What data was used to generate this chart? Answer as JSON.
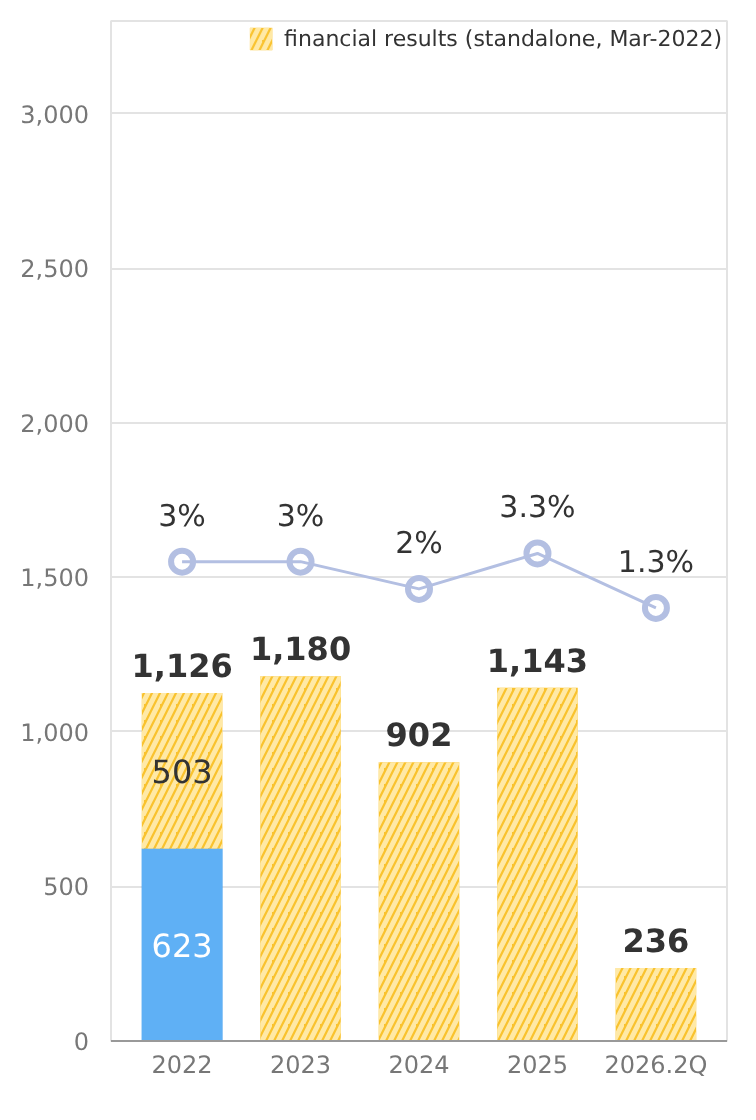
{
  "chart_data": {
    "type": "bar",
    "stacked": true,
    "categories": [
      "2022",
      "2023",
      "2024",
      "2025",
      "2026.2Q"
    ],
    "series": [
      {
        "color": "#1e88e5",
        "values": [
          623,
          null,
          null,
          null,
          null
        ],
        "value_labels": [
          "623",
          null,
          null,
          null,
          null
        ]
      },
      {
        "name": "financial results (standalone, Mar-2022)",
        "color": "#f9c22e",
        "values": [
          503,
          1180,
          902,
          1143,
          236
        ],
        "value_labels": [
          "503",
          null,
          null,
          null,
          null
        ]
      },
      {
        "type": "line",
        "axis": "y2",
        "color": "#b3bfe2",
        "values": [
          3,
          3,
          2,
          3.3,
          1.3
        ],
        "value_labels": [
          "3%",
          "3%",
          "2%",
          "3.3%",
          "1.3%"
        ]
      }
    ],
    "totals": [
      "1,126",
      "1,180",
      "902",
      "1,143",
      "236"
    ],
    "ylim": [
      0,
      3300
    ],
    "yticks": [
      {
        "value": 0,
        "label": "0"
      },
      {
        "value": 500,
        "label": "500"
      },
      {
        "value": 1000,
        "label": "1,000"
      },
      {
        "value": 1500,
        "label": "1,500"
      },
      {
        "value": 2000,
        "label": "2,000"
      },
      {
        "value": 2500,
        "label": "2,500"
      },
      {
        "value": 3000,
        "label": "3,000"
      }
    ],
    "y2lim": [
      -14.6,
      22.85
    ],
    "grid": "y",
    "legend": "top right",
    "marker": "circle"
  }
}
